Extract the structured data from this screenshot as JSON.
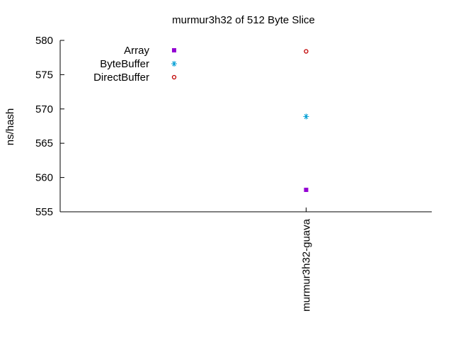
{
  "chart_data": {
    "type": "scatter",
    "title": "murmur3h32 of 512 Byte Slice",
    "xlabel": "",
    "ylabel": "ns/hash",
    "categories": [
      "murmur3h32-guava"
    ],
    "ylim": [
      555,
      580
    ],
    "yticks": [
      555,
      560,
      565,
      570,
      575,
      580
    ],
    "grid": false,
    "legend_position": "top-left",
    "series": [
      {
        "name": "Array",
        "color": "#9400d3",
        "marker": "filled-square",
        "values": [
          558.2
        ]
      },
      {
        "name": "ByteBuffer",
        "color": "#009ed4",
        "marker": "asterisk",
        "values": [
          568.9
        ]
      },
      {
        "name": "DirectBuffer",
        "color": "#c00000",
        "marker": "open-circle",
        "values": [
          578.4
        ]
      }
    ]
  }
}
